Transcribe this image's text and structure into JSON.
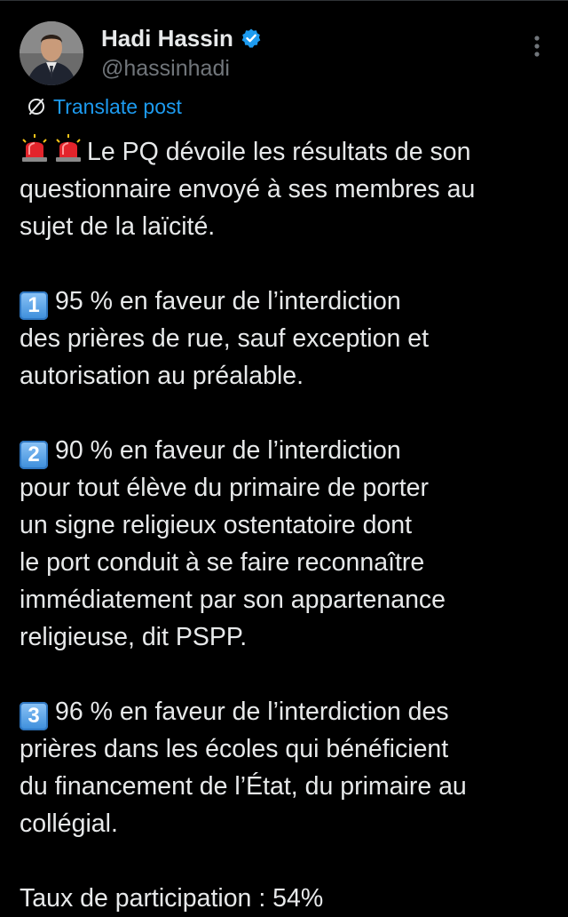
{
  "author": {
    "display_name": "Hadi Hassin",
    "handle": "@hassinhadi",
    "verified": true
  },
  "translate": {
    "label": "Translate post"
  },
  "post": {
    "intro_emojis": [
      "rotating-light-emoji",
      "rotating-light-emoji"
    ],
    "intro_line_1": "Le PQ dévoile les résultats de son",
    "intro_line_2": "questionnaire envoyé à ses membres au",
    "intro_line_3": "sujet de la laïcité.",
    "points": [
      {
        "number": "1",
        "lines": [
          "95 % en faveur de l’interdiction",
          "des prières de rue, sauf exception et",
          "autorisation au préalable."
        ]
      },
      {
        "number": "2",
        "lines": [
          "90 % en faveur de l’interdiction",
          "pour tout élève du primaire de porter",
          "un signe religieux ostentatoire dont",
          "le port conduit à se faire reconnaître",
          "immédiatement par son appartenance",
          "religieuse, dit PSPP."
        ]
      },
      {
        "number": "3",
        "lines": [
          "96 % en faveur de l’interdiction des",
          "prières dans les écoles qui bénéficient",
          "du financement de l’État, du primaire au",
          "collégial."
        ]
      }
    ],
    "participation": "Taux de participation : 54%"
  },
  "colors": {
    "background": "#000000",
    "text": "#e7e9ea",
    "muted": "#71767b",
    "link": "#1d9bf0",
    "verified": "#1d9bf0"
  }
}
